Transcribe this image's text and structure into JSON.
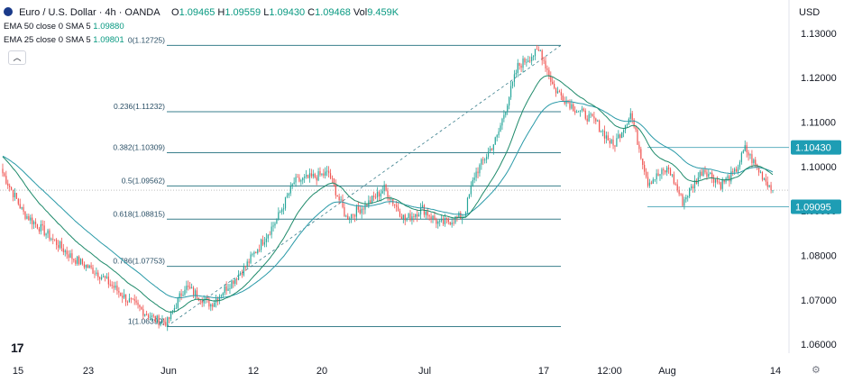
{
  "header": {
    "symbol": "Euro / U.S. Dollar · 4h · OANDA",
    "open_label": "O",
    "open": "1.09465",
    "high_label": "H",
    "high": "1.09559",
    "low_label": "L",
    "low": "1.09430",
    "close_label": "C",
    "close": "1.09468",
    "vol_label": "Vol",
    "vol": "9.459K"
  },
  "indicators": [
    {
      "label": "EMA 50 close 0 SMA 5",
      "value": "1.09880"
    },
    {
      "label": "EMA 25 close 0 SMA 5",
      "value": "1.09801"
    }
  ],
  "currency": "USD",
  "collapse_icon": "chevron-up-icon",
  "logo": "17",
  "settings_icon": "gear-icon",
  "colors": {
    "up": "#26a69a",
    "down": "#ef5350",
    "fib": "#3a7f8c",
    "ema50": "#2a9aa8",
    "ema25": "#1e8a6a",
    "badge": "#1e9db4"
  },
  "chart_data": {
    "type": "candlestick",
    "title": "Euro / U.S. Dollar · 4h · OANDA",
    "ylim": [
      1.058,
      1.133
    ],
    "x_ticks": [
      "15",
      "23",
      "Jun",
      "12",
      "20",
      "Jul",
      "17",
      "12:00",
      "Aug",
      "14"
    ],
    "y_ticks": [
      "1.13000",
      "1.12000",
      "1.11000",
      "1.10000",
      "1.09000",
      "1.08000",
      "1.07000",
      "1.06000"
    ],
    "y_tick_values": [
      1.13,
      1.12,
      1.11,
      1.1,
      1.09,
      1.08,
      1.07,
      1.06
    ],
    "price_badges": [
      {
        "label": "1.10430",
        "value": 1.1043
      },
      {
        "label": "1.09095",
        "value": 1.09095
      }
    ],
    "fib_levels": [
      {
        "label": "0(1.12725)",
        "value": 1.12725
      },
      {
        "label": "0.236(1.11232)",
        "value": 1.11232
      },
      {
        "label": "0.382(1.10309)",
        "value": 1.10309
      },
      {
        "label": "0.5(1.09562)",
        "value": 1.09562
      },
      {
        "label": "0.618(1.08815)",
        "value": 1.08815
      },
      {
        "label": "0.786(1.07753)",
        "value": 1.07753
      },
      {
        "label": "1(1.06399)",
        "value": 1.06399
      }
    ],
    "current_price": 1.09468,
    "close_anchors": [
      [
        0,
        1.0985
      ],
      [
        12,
        1.0895
      ],
      [
        25,
        1.085
      ],
      [
        40,
        1.0795
      ],
      [
        55,
        1.076
      ],
      [
        72,
        1.07
      ],
      [
        88,
        1.0655
      ],
      [
        95,
        1.065
      ],
      [
        105,
        1.073
      ],
      [
        120,
        1.069
      ],
      [
        140,
        1.0775
      ],
      [
        158,
        1.088
      ],
      [
        168,
        1.0965
      ],
      [
        188,
        1.0985
      ],
      [
        198,
        1.0885
      ],
      [
        210,
        1.0915
      ],
      [
        220,
        1.095
      ],
      [
        232,
        1.088
      ],
      [
        242,
        1.0905
      ],
      [
        252,
        1.087
      ],
      [
        266,
        1.089
      ],
      [
        272,
        1.098
      ],
      [
        285,
        1.1065
      ],
      [
        297,
        1.1225
      ],
      [
        305,
        1.125
      ],
      [
        310,
        1.126
      ],
      [
        318,
        1.1175
      ],
      [
        330,
        1.113
      ],
      [
        342,
        1.11
      ],
      [
        352,
        1.1045
      ],
      [
        362,
        1.112
      ],
      [
        372,
        1.0965
      ],
      [
        384,
        1.0995
      ],
      [
        392,
        1.092
      ],
      [
        404,
        1.0995
      ],
      [
        414,
        1.096
      ],
      [
        422,
        1.0985
      ],
      [
        428,
        1.104
      ],
      [
        436,
        1.099
      ],
      [
        444,
        1.0947
      ]
    ]
  }
}
